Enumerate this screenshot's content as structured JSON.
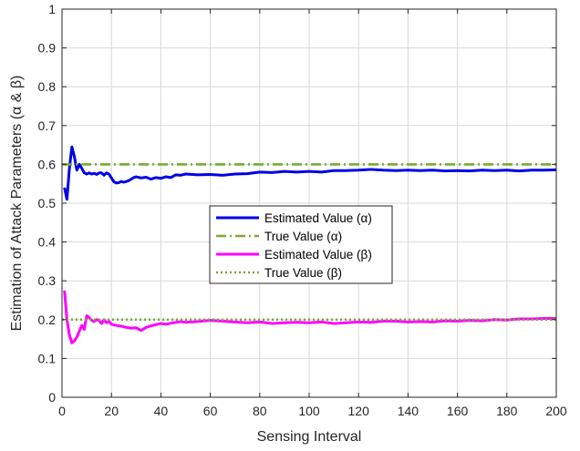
{
  "chart_data": {
    "type": "line",
    "xlabel": "Sensing Interval",
    "ylabel": "Estimation of Attack Parameters (α & β)",
    "xlim": [
      0,
      200
    ],
    "ylim": [
      0,
      1
    ],
    "xticks": [
      "0",
      "20",
      "40",
      "60",
      "80",
      "100",
      "120",
      "140",
      "160",
      "180",
      "200"
    ],
    "yticks": [
      "0",
      "0.1",
      "0.2",
      "0.3",
      "0.4",
      "0.5",
      "0.6",
      "0.7",
      "0.8",
      "0.9",
      "1"
    ],
    "grid": true,
    "legend_position": "center",
    "series": [
      {
        "name": "Estimated Value (α)",
        "color": "#0000e6",
        "style": "solid",
        "x": [
          1,
          2,
          3,
          4,
          5,
          6,
          7,
          8,
          9,
          10,
          11,
          12,
          13,
          14,
          15,
          16,
          17,
          18,
          19,
          20,
          21,
          22,
          23,
          24,
          25,
          26,
          27,
          28,
          29,
          30,
          32,
          34,
          36,
          38,
          40,
          42,
          44,
          46,
          48,
          50,
          55,
          60,
          65,
          70,
          75,
          80,
          85,
          90,
          95,
          100,
          105,
          110,
          115,
          120,
          125,
          130,
          135,
          140,
          145,
          150,
          155,
          160,
          165,
          170,
          175,
          180,
          185,
          190,
          195,
          200
        ],
        "y": [
          0.54,
          0.51,
          0.59,
          0.645,
          0.62,
          0.585,
          0.6,
          0.59,
          0.578,
          0.575,
          0.578,
          0.575,
          0.577,
          0.574,
          0.578,
          0.578,
          0.572,
          0.578,
          0.575,
          0.565,
          0.555,
          0.552,
          0.553,
          0.556,
          0.554,
          0.556,
          0.558,
          0.562,
          0.566,
          0.568,
          0.565,
          0.567,
          0.562,
          0.566,
          0.564,
          0.568,
          0.566,
          0.573,
          0.572,
          0.575,
          0.573,
          0.574,
          0.572,
          0.575,
          0.576,
          0.58,
          0.579,
          0.582,
          0.58,
          0.582,
          0.58,
          0.584,
          0.584,
          0.585,
          0.587,
          0.585,
          0.584,
          0.585,
          0.584,
          0.585,
          0.583,
          0.584,
          0.583,
          0.585,
          0.584,
          0.585,
          0.583,
          0.585,
          0.585,
          0.586
        ]
      },
      {
        "name": "True Value (α)",
        "color": "#77ac30",
        "style": "dashdot",
        "x": [
          0,
          200
        ],
        "y": [
          0.6,
          0.6
        ]
      },
      {
        "name": "Estimated Value (β)",
        "color": "#ff00ff",
        "style": "solid",
        "x": [
          1,
          2,
          3,
          4,
          5,
          6,
          7,
          8,
          9,
          10,
          11,
          12,
          13,
          14,
          15,
          16,
          17,
          18,
          19,
          20,
          22,
          24,
          26,
          28,
          30,
          32,
          34,
          36,
          38,
          40,
          42,
          45,
          48,
          50,
          55,
          60,
          65,
          70,
          75,
          80,
          85,
          90,
          95,
          100,
          105,
          110,
          115,
          120,
          125,
          130,
          135,
          140,
          145,
          150,
          155,
          160,
          165,
          170,
          175,
          180,
          185,
          190,
          195,
          200
        ],
        "y": [
          0.275,
          0.2,
          0.16,
          0.14,
          0.145,
          0.155,
          0.17,
          0.185,
          0.175,
          0.21,
          0.205,
          0.198,
          0.195,
          0.2,
          0.198,
          0.19,
          0.2,
          0.192,
          0.196,
          0.188,
          0.185,
          0.183,
          0.18,
          0.178,
          0.179,
          0.172,
          0.18,
          0.184,
          0.187,
          0.19,
          0.188,
          0.192,
          0.195,
          0.193,
          0.195,
          0.198,
          0.196,
          0.194,
          0.192,
          0.194,
          0.19,
          0.192,
          0.193,
          0.192,
          0.194,
          0.19,
          0.192,
          0.194,
          0.193,
          0.196,
          0.196,
          0.194,
          0.195,
          0.194,
          0.197,
          0.196,
          0.198,
          0.197,
          0.2,
          0.199,
          0.202,
          0.202,
          0.203,
          0.203
        ]
      },
      {
        "name": "True Value (β)",
        "color": "#77ac30",
        "style": "dotted",
        "x": [
          0,
          200
        ],
        "y": [
          0.2,
          0.2
        ]
      }
    ]
  }
}
